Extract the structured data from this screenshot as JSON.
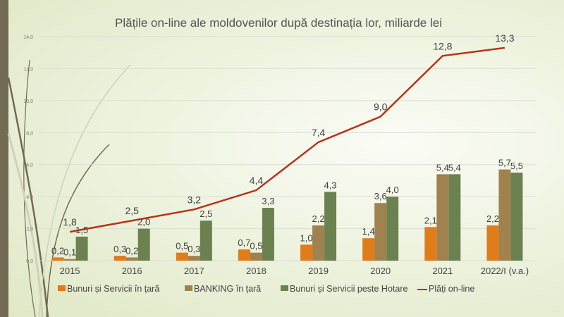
{
  "chart_data": {
    "type": "bar",
    "title": "Plățile on-line ale moldovenilor după destinația lor, miliarde lei",
    "categories": [
      "2015",
      "2016",
      "2017",
      "2018",
      "2019",
      "2020",
      "2021",
      "2022/I (v.a.)"
    ],
    "ylim": [
      0,
      14
    ],
    "yticks": [
      "0,0",
      "2,0",
      "4,0",
      "6,0",
      "8,0",
      "10,0",
      "12,0",
      "14,0"
    ],
    "grid": true,
    "legend_position": "bottom",
    "series": [
      {
        "name": "Bunuri și Servicii în țară",
        "type": "bar",
        "color": "#e07c1a",
        "values": [
          0.2,
          0.3,
          0.5,
          0.7,
          1.0,
          1.4,
          2.1,
          2.2
        ],
        "labels": [
          "0,2",
          "0,3",
          "0,5",
          "0,7",
          "1,0",
          "1,4",
          "2,1",
          "2,2"
        ]
      },
      {
        "name": "BANKING în țară",
        "type": "bar",
        "color": "#a0824f",
        "values": [
          0.1,
          0.2,
          0.3,
          0.5,
          2.2,
          3.6,
          5.4,
          5.7
        ],
        "labels": [
          "0,1",
          "0,2",
          "0,3",
          "0,5",
          "2,2",
          "3,6",
          "5,4",
          "5,7"
        ]
      },
      {
        "name": "Bunuri și Servicii peste Hotare",
        "type": "bar",
        "color": "#6b8150",
        "values": [
          1.5,
          2.0,
          2.5,
          3.3,
          4.3,
          4.0,
          5.4,
          5.5
        ],
        "labels": [
          "1,5",
          "2,0",
          "2,5",
          "3,3",
          "4,3",
          "4,0",
          "5,4",
          "5,5"
        ]
      },
      {
        "name": "Plăți on-line",
        "type": "line",
        "color": "#b5341a",
        "values": [
          1.8,
          2.5,
          3.2,
          4.4,
          7.4,
          9.0,
          12.8,
          13.3
        ],
        "labels": [
          "1,8",
          "2,5",
          "3,2",
          "4,4",
          "7,4",
          "9,0",
          "12,8",
          "13,3"
        ]
      }
    ]
  }
}
